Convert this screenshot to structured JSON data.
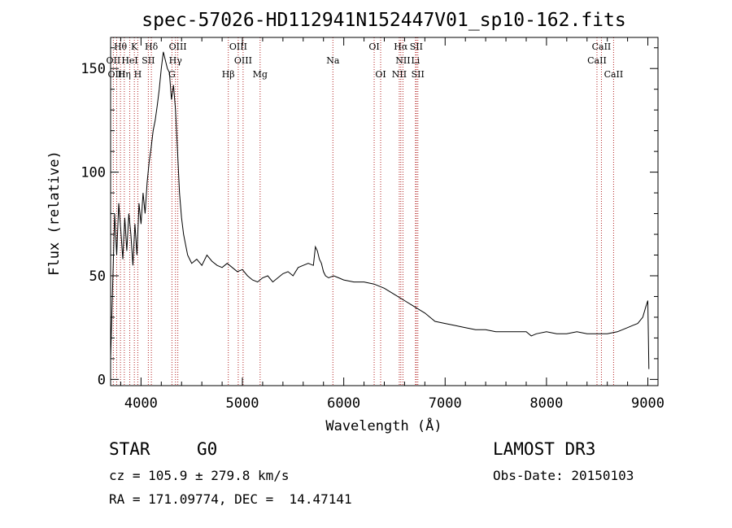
{
  "chart_data": {
    "type": "line",
    "title": "spec-57026-HD112941N152447V01_sp10-162.fits",
    "xlabel": "Wavelength (Å)",
    "ylabel": "Flux (relative)",
    "xlim": [
      3700,
      9100
    ],
    "ylim": [
      -3,
      165
    ],
    "xticks": [
      4000,
      5000,
      6000,
      7000,
      8000,
      9000
    ],
    "yticks": [
      0,
      50,
      100,
      150
    ],
    "grid": false,
    "series": [
      {
        "x": [
          3700,
          3720,
          3740,
          3760,
          3780,
          3800,
          3820,
          3840,
          3860,
          3880,
          3900,
          3920,
          3940,
          3960,
          3980,
          4000,
          4020,
          4040,
          4060,
          4080,
          4100,
          4120,
          4140,
          4160,
          4180,
          4200,
          4220,
          4240,
          4260,
          4280,
          4300,
          4320,
          4340,
          4360,
          4380,
          4400,
          4420,
          4440,
          4460,
          4480,
          4500,
          4550,
          4600,
          4650,
          4700,
          4750,
          4800,
          4850,
          4900,
          4950,
          5000,
          5050,
          5100,
          5150,
          5200,
          5250,
          5300,
          5350,
          5400,
          5450,
          5500,
          5550,
          5600,
          5650,
          5700,
          5720,
          5740,
          5760,
          5780,
          5800,
          5820,
          5850,
          5900,
          5950,
          6000,
          6100,
          6200,
          6300,
          6400,
          6500,
          6600,
          6700,
          6800,
          6900,
          7000,
          7100,
          7200,
          7300,
          7400,
          7500,
          7600,
          7700,
          7800,
          7850,
          7900,
          8000,
          8100,
          8200,
          8300,
          8400,
          8500,
          8600,
          8700,
          8800,
          8850,
          8900,
          8950,
          8980,
          9000,
          9010
        ],
        "y": [
          10,
          45,
          80,
          60,
          85,
          72,
          58,
          78,
          62,
          80,
          70,
          55,
          75,
          60,
          85,
          75,
          90,
          80,
          95,
          105,
          112,
          120,
          125,
          132,
          140,
          150,
          158,
          154,
          150,
          148,
          135,
          142,
          130,
          110,
          90,
          78,
          70,
          65,
          60,
          58,
          56,
          58,
          55,
          60,
          57,
          55,
          54,
          56,
          54,
          52,
          53,
          50,
          48,
          47,
          49,
          50,
          47,
          49,
          51,
          52,
          50,
          54,
          55,
          56,
          55,
          64,
          62,
          58,
          56,
          52,
          50,
          49,
          50,
          49,
          48,
          47,
          47,
          46,
          44,
          41,
          38,
          35,
          32,
          28,
          27,
          26,
          25,
          24,
          24,
          23,
          23,
          23,
          23,
          21,
          22,
          23,
          22,
          22,
          23,
          22,
          22,
          22,
          23,
          25,
          26,
          27,
          30,
          35,
          38,
          5
        ]
      }
    ],
    "spectral_lines": [
      {
        "name": "Hθ",
        "x": 3797,
        "row": 0
      },
      {
        "name": "K",
        "x": 3934,
        "row": 0
      },
      {
        "name": "Hδ",
        "x": 4102,
        "row": 0
      },
      {
        "name": "OIII",
        "x": 4363,
        "row": 0
      },
      {
        "name": "OIII",
        "x": 4959,
        "row": 0
      },
      {
        "name": "OI",
        "x": 6300,
        "row": 0
      },
      {
        "name": "Hα",
        "x": 6563,
        "row": 0
      },
      {
        "name": "SII",
        "x": 6716,
        "row": 0
      },
      {
        "name": "CaII",
        "x": 8542,
        "row": 0
      },
      {
        "name": "OII",
        "x": 3727,
        "row": 1
      },
      {
        "name": "HeI",
        "x": 3889,
        "row": 1
      },
      {
        "name": "SII",
        "x": 4072,
        "row": 1
      },
      {
        "name": "Hγ",
        "x": 4340,
        "row": 1
      },
      {
        "name": "OIII",
        "x": 5007,
        "row": 1
      },
      {
        "name": "Na",
        "x": 5893,
        "row": 1
      },
      {
        "name": "NII",
        "x": 6584,
        "row": 1
      },
      {
        "name": "Li",
        "x": 6708,
        "row": 1
      },
      {
        "name": "CaII",
        "x": 8498,
        "row": 1
      },
      {
        "name": "OIII",
        "x": 3760,
        "row": 2
      },
      {
        "name": "Hη",
        "x": 3835,
        "row": 2
      },
      {
        "name": "H",
        "x": 3968,
        "row": 2
      },
      {
        "name": "G",
        "x": 4305,
        "row": 2
      },
      {
        "name": "Hβ",
        "x": 4861,
        "row": 2
      },
      {
        "name": "Mg",
        "x": 5175,
        "row": 2
      },
      {
        "name": "OI",
        "x": 6364,
        "row": 2
      },
      {
        "name": "NII",
        "x": 6548,
        "row": 2
      },
      {
        "name": "SII",
        "x": 6731,
        "row": 2
      },
      {
        "name": "CaII",
        "x": 8662,
        "row": 2
      }
    ],
    "line_color": "#b22222"
  },
  "info": {
    "class": "STAR",
    "subclass": "G0",
    "survey": "LAMOST DR3",
    "cz": "cz = 105.9 ± 279.8 km/s",
    "obs_date": "Obs-Date: 20150103",
    "coords": "RA = 171.09774, DEC =  14.47141"
  }
}
